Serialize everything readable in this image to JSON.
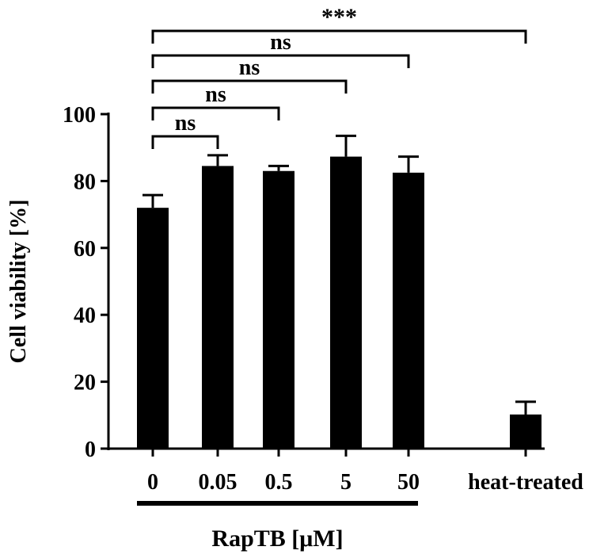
{
  "chart_data": {
    "type": "bar",
    "categories": [
      "0",
      "0.05",
      "0.5",
      "5",
      "50",
      "heat-treated"
    ],
    "values": [
      72,
      84.5,
      83,
      87.3,
      82.5,
      10.2
    ],
    "errors": [
      3.8,
      3.2,
      1.5,
      6.2,
      4.8,
      3.8
    ],
    "ylabel": "Cell viability [%]",
    "xlabel": "RapTB [μM]",
    "ylim": [
      0,
      100
    ],
    "yticks": [
      0,
      20,
      40,
      60,
      80,
      100
    ],
    "bar_color": "#000000",
    "grid": false,
    "legend": "none",
    "group_bracket": {
      "label": "RapTB [μM]",
      "categories": [
        "0",
        "0.05",
        "0.5",
        "5",
        "50"
      ]
    },
    "comparisons": [
      {
        "from": "0",
        "to": "0.05",
        "label": "ns"
      },
      {
        "from": "0",
        "to": "0.5",
        "label": "ns"
      },
      {
        "from": "0",
        "to": "5",
        "label": "ns"
      },
      {
        "from": "0",
        "to": "50",
        "label": "ns"
      },
      {
        "from": "0",
        "to": "heat-treated",
        "label": "***"
      }
    ]
  }
}
